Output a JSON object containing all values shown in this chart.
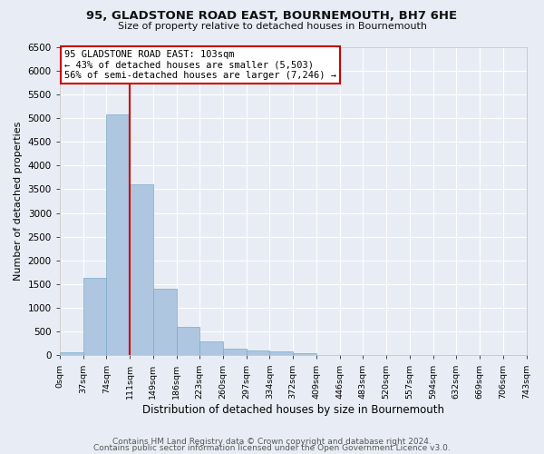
{
  "title1": "95, GLADSTONE ROAD EAST, BOURNEMOUTH, BH7 6HE",
  "title2": "Size of property relative to detached houses in Bournemouth",
  "xlabel": "Distribution of detached houses by size in Bournemouth",
  "ylabel": "Number of detached properties",
  "bar_values": [
    60,
    1640,
    5080,
    3600,
    1400,
    600,
    290,
    150,
    100,
    80,
    40,
    10,
    0,
    0,
    0,
    0,
    0,
    0,
    0,
    0
  ],
  "bin_labels": [
    "0sqm",
    "37sqm",
    "74sqm",
    "111sqm",
    "149sqm",
    "186sqm",
    "223sqm",
    "260sqm",
    "297sqm",
    "334sqm",
    "372sqm",
    "409sqm",
    "446sqm",
    "483sqm",
    "520sqm",
    "557sqm",
    "594sqm",
    "632sqm",
    "669sqm",
    "706sqm",
    "743sqm"
  ],
  "bar_color": "#aec6df",
  "bar_edge_color": "#7aaac8",
  "vline_x": 2.5,
  "vline_color": "#cc0000",
  "annotation_box_text": "95 GLADSTONE ROAD EAST: 103sqm\n← 43% of detached houses are smaller (5,503)\n56% of semi-detached houses are larger (7,246) →",
  "annotation_box_color": "#cc0000",
  "annotation_box_bg": "#ffffff",
  "ylim": [
    0,
    6500
  ],
  "yticks": [
    0,
    500,
    1000,
    1500,
    2000,
    2500,
    3000,
    3500,
    4000,
    4500,
    5000,
    5500,
    6000,
    6500
  ],
  "footer1": "Contains HM Land Registry data © Crown copyright and database right 2024.",
  "footer2": "Contains public sector information licensed under the Open Government Licence v3.0.",
  "bg_color": "#e8edf5",
  "plot_bg_color": "#e8edf5",
  "grid_color": "#ffffff",
  "title1_fontsize": 9.5,
  "title2_fontsize": 8.0,
  "ylabel_fontsize": 8.0,
  "xlabel_fontsize": 8.5,
  "footer_fontsize": 6.5,
  "ytick_fontsize": 7.5,
  "xtick_fontsize": 6.8
}
